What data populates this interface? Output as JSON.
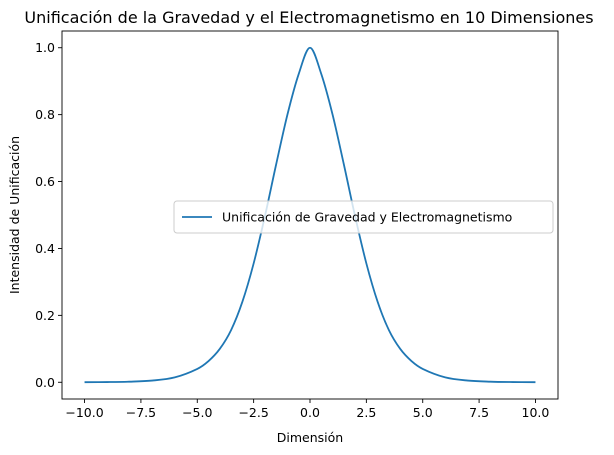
{
  "chart_data": {
    "type": "line",
    "title": "Unificación de la Gravedad y el Electromagnetismo en 10 Dimensiones",
    "xlabel": "Dimensión",
    "ylabel": "Intensidad de Unificación",
    "xlim": [
      -11,
      11
    ],
    "ylim": [
      -0.05,
      1.05
    ],
    "xticks": [
      -10.0,
      -7.5,
      -5.0,
      -2.5,
      0.0,
      2.5,
      5.0,
      7.5,
      10.0
    ],
    "xtick_labels": [
      "−10.0",
      "−7.5",
      "−5.0",
      "−2.5",
      "0.0",
      "2.5",
      "5.0",
      "7.5",
      "10.0"
    ],
    "yticks": [
      0.0,
      0.2,
      0.4,
      0.6,
      0.8,
      1.0
    ],
    "ytick_labels": [
      "0.0",
      "0.2",
      "0.4",
      "0.6",
      "0.8",
      "1.0"
    ],
    "grid": false,
    "legend_position": "center-right",
    "series": [
      {
        "name": "Unificación de Gravedad y Electromagnetismo",
        "color": "#1f77b4",
        "x": [
          -10,
          -9,
          -8,
          -7,
          -6,
          -5,
          -4.5,
          -4,
          -3.5,
          -3,
          -2.5,
          -2,
          -1.5,
          -1,
          -0.5,
          0,
          0.5,
          1,
          1.5,
          2,
          2.5,
          3,
          3.5,
          4,
          4.5,
          5,
          6,
          7,
          8,
          9,
          10
        ],
        "y": [
          0.0002,
          0.0006,
          0.0018,
          0.0051,
          0.0146,
          0.0399,
          0.0635,
          0.1,
          0.156,
          0.2404,
          0.3552,
          0.4964,
          0.6517,
          0.8004,
          0.9217,
          1.0,
          0.9217,
          0.8004,
          0.6517,
          0.4964,
          0.3552,
          0.2404,
          0.156,
          0.1,
          0.0635,
          0.0399,
          0.0146,
          0.0051,
          0.0018,
          0.0006,
          0.0002
        ]
      }
    ]
  }
}
